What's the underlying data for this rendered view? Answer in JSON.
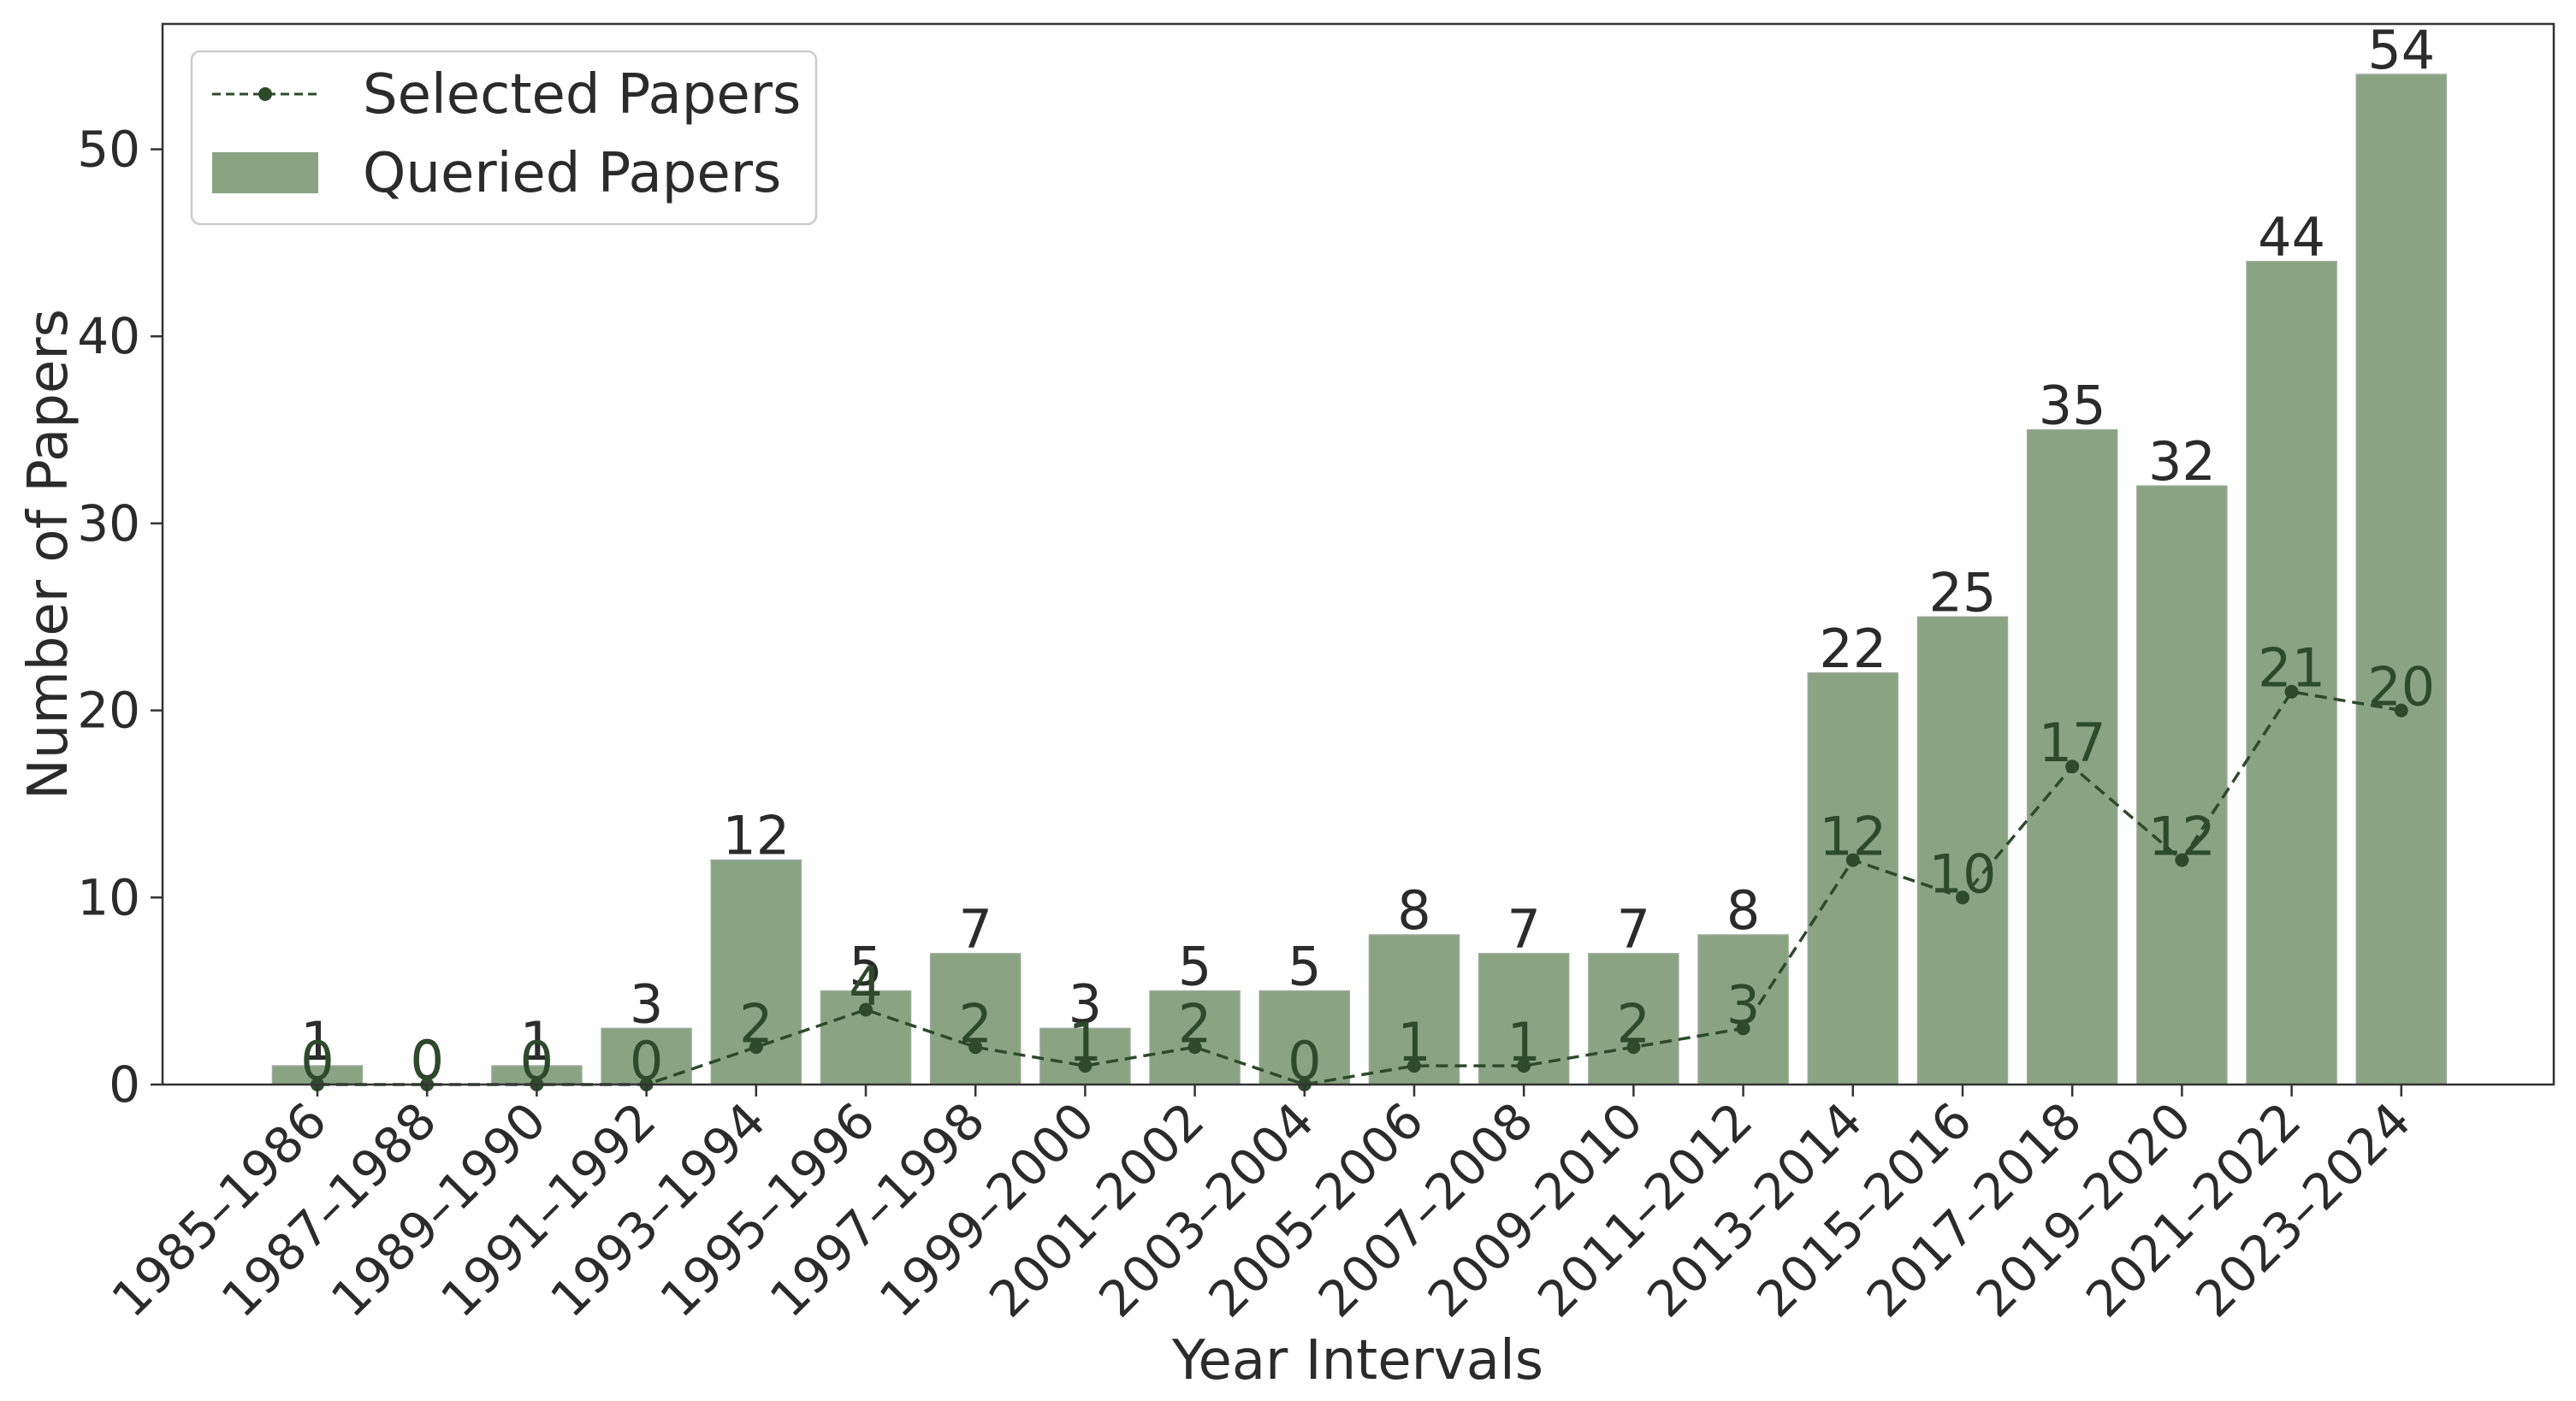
{
  "chart_data": {
    "type": "bar",
    "xlabel": "Year Intervals",
    "ylabel": "Number of Papers",
    "ylim": [
      0,
      56.7
    ],
    "yticks": [
      0,
      10,
      20,
      30,
      40,
      50
    ],
    "grid": false,
    "legend_position": "top-left",
    "categories": [
      "1985–1986",
      "1987–1988",
      "1989–1990",
      "1991–1992",
      "1993–1994",
      "1995–1996",
      "1997–1998",
      "1999–2000",
      "2001–2002",
      "2003–2004",
      "2005–2006",
      "2007–2008",
      "2009–2010",
      "2011–2012",
      "2013–2014",
      "2015–2016",
      "2017–2018",
      "2019–2020",
      "2021–2022",
      "2023–2024"
    ],
    "series": [
      {
        "name": "Queried Papers",
        "kind": "bar",
        "color": "#8aa383",
        "values": [
          1,
          0,
          1,
          3,
          12,
          5,
          7,
          3,
          5,
          5,
          8,
          7,
          7,
          8,
          22,
          25,
          35,
          32,
          44,
          54
        ]
      },
      {
        "name": "Selected Papers",
        "kind": "line",
        "style": "dashed",
        "marker": "circle",
        "color": "#2d4a2b",
        "values": [
          0,
          0,
          0,
          0,
          2,
          4,
          2,
          1,
          2,
          0,
          1,
          1,
          2,
          3,
          12,
          10,
          17,
          12,
          21,
          20
        ]
      }
    ]
  }
}
